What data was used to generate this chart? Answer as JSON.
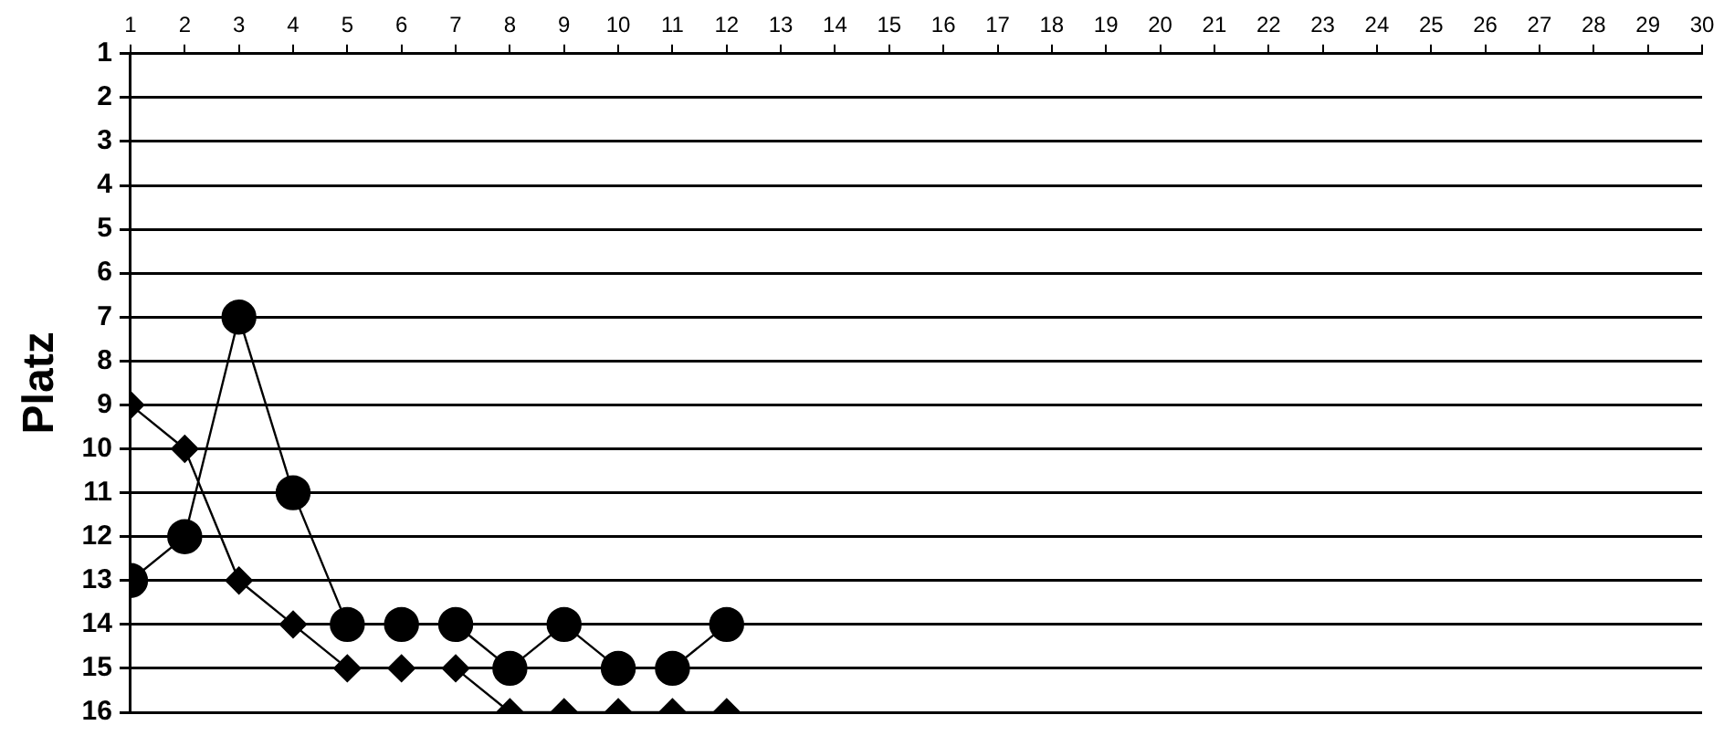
{
  "chart_data": {
    "type": "line",
    "ylabel": "Platz",
    "x": [
      1,
      2,
      3,
      4,
      5,
      6,
      7,
      8,
      9,
      10,
      11,
      12
    ],
    "xlim": [
      1,
      30
    ],
    "xticks": [
      1,
      2,
      3,
      4,
      5,
      6,
      7,
      8,
      9,
      10,
      11,
      12,
      13,
      14,
      15,
      16,
      17,
      18,
      19,
      20,
      21,
      22,
      23,
      24,
      25,
      26,
      27,
      28,
      29,
      30
    ],
    "ylim": [
      16,
      1
    ],
    "yticks": [
      1,
      2,
      3,
      4,
      5,
      6,
      7,
      8,
      9,
      10,
      11,
      12,
      13,
      14,
      15,
      16
    ],
    "series": [
      {
        "color": "#000000",
        "marker": "circle",
        "values": [
          13,
          12,
          7,
          11,
          14,
          14,
          14,
          15,
          14,
          15,
          15,
          14
        ]
      },
      {
        "color": "#000000",
        "marker": "diamond",
        "values": [
          9,
          10,
          13,
          14,
          15,
          15,
          15,
          16,
          16,
          16,
          16,
          16
        ]
      }
    ],
    "grid": "y",
    "legend": false,
    "line_style": "solid"
  }
}
